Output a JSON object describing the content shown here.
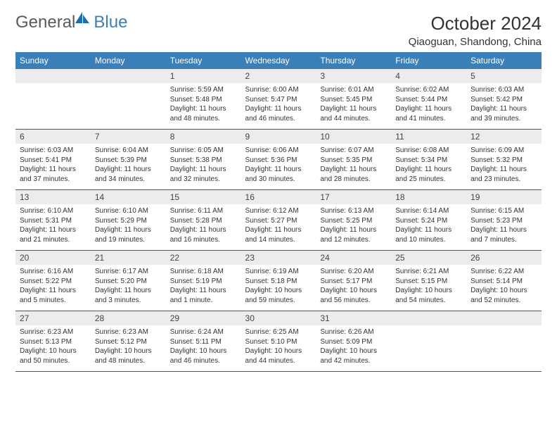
{
  "brand": {
    "general": "General",
    "blue": "Blue"
  },
  "title": "October 2024",
  "location": "Qiaoguan, Shandong, China",
  "colors": {
    "header_bg": "#3a7fb8",
    "header_text": "#ffffff",
    "border": "#2f5d89",
    "daynum_bg": "#ececec",
    "text": "#333333",
    "logo_gray": "#5a5a5a",
    "logo_blue": "#3a7fb8"
  },
  "day_headers": [
    "Sunday",
    "Monday",
    "Tuesday",
    "Wednesday",
    "Thursday",
    "Friday",
    "Saturday"
  ],
  "weeks": [
    [
      {
        "n": "",
        "sr": "",
        "ss": "",
        "dl": ""
      },
      {
        "n": "",
        "sr": "",
        "ss": "",
        "dl": ""
      },
      {
        "n": "1",
        "sr": "Sunrise: 5:59 AM",
        "ss": "Sunset: 5:48 PM",
        "dl": "Daylight: 11 hours and 48 minutes."
      },
      {
        "n": "2",
        "sr": "Sunrise: 6:00 AM",
        "ss": "Sunset: 5:47 PM",
        "dl": "Daylight: 11 hours and 46 minutes."
      },
      {
        "n": "3",
        "sr": "Sunrise: 6:01 AM",
        "ss": "Sunset: 5:45 PM",
        "dl": "Daylight: 11 hours and 44 minutes."
      },
      {
        "n": "4",
        "sr": "Sunrise: 6:02 AM",
        "ss": "Sunset: 5:44 PM",
        "dl": "Daylight: 11 hours and 41 minutes."
      },
      {
        "n": "5",
        "sr": "Sunrise: 6:03 AM",
        "ss": "Sunset: 5:42 PM",
        "dl": "Daylight: 11 hours and 39 minutes."
      }
    ],
    [
      {
        "n": "6",
        "sr": "Sunrise: 6:03 AM",
        "ss": "Sunset: 5:41 PM",
        "dl": "Daylight: 11 hours and 37 minutes."
      },
      {
        "n": "7",
        "sr": "Sunrise: 6:04 AM",
        "ss": "Sunset: 5:39 PM",
        "dl": "Daylight: 11 hours and 34 minutes."
      },
      {
        "n": "8",
        "sr": "Sunrise: 6:05 AM",
        "ss": "Sunset: 5:38 PM",
        "dl": "Daylight: 11 hours and 32 minutes."
      },
      {
        "n": "9",
        "sr": "Sunrise: 6:06 AM",
        "ss": "Sunset: 5:36 PM",
        "dl": "Daylight: 11 hours and 30 minutes."
      },
      {
        "n": "10",
        "sr": "Sunrise: 6:07 AM",
        "ss": "Sunset: 5:35 PM",
        "dl": "Daylight: 11 hours and 28 minutes."
      },
      {
        "n": "11",
        "sr": "Sunrise: 6:08 AM",
        "ss": "Sunset: 5:34 PM",
        "dl": "Daylight: 11 hours and 25 minutes."
      },
      {
        "n": "12",
        "sr": "Sunrise: 6:09 AM",
        "ss": "Sunset: 5:32 PM",
        "dl": "Daylight: 11 hours and 23 minutes."
      }
    ],
    [
      {
        "n": "13",
        "sr": "Sunrise: 6:10 AM",
        "ss": "Sunset: 5:31 PM",
        "dl": "Daylight: 11 hours and 21 minutes."
      },
      {
        "n": "14",
        "sr": "Sunrise: 6:10 AM",
        "ss": "Sunset: 5:29 PM",
        "dl": "Daylight: 11 hours and 19 minutes."
      },
      {
        "n": "15",
        "sr": "Sunrise: 6:11 AM",
        "ss": "Sunset: 5:28 PM",
        "dl": "Daylight: 11 hours and 16 minutes."
      },
      {
        "n": "16",
        "sr": "Sunrise: 6:12 AM",
        "ss": "Sunset: 5:27 PM",
        "dl": "Daylight: 11 hours and 14 minutes."
      },
      {
        "n": "17",
        "sr": "Sunrise: 6:13 AM",
        "ss": "Sunset: 5:25 PM",
        "dl": "Daylight: 11 hours and 12 minutes."
      },
      {
        "n": "18",
        "sr": "Sunrise: 6:14 AM",
        "ss": "Sunset: 5:24 PM",
        "dl": "Daylight: 11 hours and 10 minutes."
      },
      {
        "n": "19",
        "sr": "Sunrise: 6:15 AM",
        "ss": "Sunset: 5:23 PM",
        "dl": "Daylight: 11 hours and 7 minutes."
      }
    ],
    [
      {
        "n": "20",
        "sr": "Sunrise: 6:16 AM",
        "ss": "Sunset: 5:22 PM",
        "dl": "Daylight: 11 hours and 5 minutes."
      },
      {
        "n": "21",
        "sr": "Sunrise: 6:17 AM",
        "ss": "Sunset: 5:20 PM",
        "dl": "Daylight: 11 hours and 3 minutes."
      },
      {
        "n": "22",
        "sr": "Sunrise: 6:18 AM",
        "ss": "Sunset: 5:19 PM",
        "dl": "Daylight: 11 hours and 1 minute."
      },
      {
        "n": "23",
        "sr": "Sunrise: 6:19 AM",
        "ss": "Sunset: 5:18 PM",
        "dl": "Daylight: 10 hours and 59 minutes."
      },
      {
        "n": "24",
        "sr": "Sunrise: 6:20 AM",
        "ss": "Sunset: 5:17 PM",
        "dl": "Daylight: 10 hours and 56 minutes."
      },
      {
        "n": "25",
        "sr": "Sunrise: 6:21 AM",
        "ss": "Sunset: 5:15 PM",
        "dl": "Daylight: 10 hours and 54 minutes."
      },
      {
        "n": "26",
        "sr": "Sunrise: 6:22 AM",
        "ss": "Sunset: 5:14 PM",
        "dl": "Daylight: 10 hours and 52 minutes."
      }
    ],
    [
      {
        "n": "27",
        "sr": "Sunrise: 6:23 AM",
        "ss": "Sunset: 5:13 PM",
        "dl": "Daylight: 10 hours and 50 minutes."
      },
      {
        "n": "28",
        "sr": "Sunrise: 6:23 AM",
        "ss": "Sunset: 5:12 PM",
        "dl": "Daylight: 10 hours and 48 minutes."
      },
      {
        "n": "29",
        "sr": "Sunrise: 6:24 AM",
        "ss": "Sunset: 5:11 PM",
        "dl": "Daylight: 10 hours and 46 minutes."
      },
      {
        "n": "30",
        "sr": "Sunrise: 6:25 AM",
        "ss": "Sunset: 5:10 PM",
        "dl": "Daylight: 10 hours and 44 minutes."
      },
      {
        "n": "31",
        "sr": "Sunrise: 6:26 AM",
        "ss": "Sunset: 5:09 PM",
        "dl": "Daylight: 10 hours and 42 minutes."
      },
      {
        "n": "",
        "sr": "",
        "ss": "",
        "dl": ""
      },
      {
        "n": "",
        "sr": "",
        "ss": "",
        "dl": ""
      }
    ]
  ]
}
